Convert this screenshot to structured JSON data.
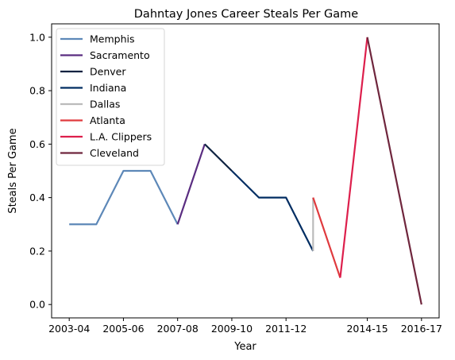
{
  "chart_data": {
    "type": "line",
    "title": "Dahntay Jones Career Steals Per Game",
    "xlabel": "Year",
    "ylabel": "Steals Per Game",
    "x_ticks": [
      "2003-04",
      "2005-06",
      "2007-08",
      "2009-10",
      "2011-12",
      "2014-15",
      "2016-17"
    ],
    "y_ticks": [
      "0.0",
      "0.2",
      "0.4",
      "0.6",
      "0.8",
      "1.0"
    ],
    "ylim": [
      -0.05,
      1.05
    ],
    "grid": false,
    "legend_position": "top-left",
    "series": [
      {
        "name": "Memphis",
        "color": "#5d88b8",
        "points": [
          {
            "x": "2003-04",
            "y": 0.3
          },
          {
            "x": "2004-05",
            "y": 0.3
          },
          {
            "x": "2005-06",
            "y": 0.5
          },
          {
            "x": "2006-07",
            "y": 0.5
          },
          {
            "x": "2007-08",
            "y": 0.3
          }
        ]
      },
      {
        "name": "Sacramento",
        "color": "#5a2d81",
        "points": [
          {
            "x": "2007-08",
            "y": 0.3
          },
          {
            "x": "2008-09",
            "y": 0.6
          }
        ]
      },
      {
        "name": "Denver",
        "color": "#0e2240",
        "points": [
          {
            "x": "2008-09",
            "y": 0.6
          },
          {
            "x": "2009-10",
            "y": 0.5
          }
        ]
      },
      {
        "name": "Indiana",
        "color": "#002d62",
        "points": [
          {
            "x": "2009-10",
            "y": 0.5
          },
          {
            "x": "2010-11",
            "y": 0.4
          },
          {
            "x": "2011-12",
            "y": 0.4
          },
          {
            "x": "2012-13",
            "y": 0.2
          }
        ]
      },
      {
        "name": "Dallas",
        "color": "#bbbbbb",
        "points": [
          {
            "x": "2012-13",
            "y": 0.2
          },
          {
            "x": "2012-13",
            "y": 0.4
          }
        ]
      },
      {
        "name": "Atlanta",
        "color": "#e03a3e",
        "points": [
          {
            "x": "2012-13",
            "y": 0.4
          },
          {
            "x": "2013-14",
            "y": 0.1
          }
        ]
      },
      {
        "name": "L.A. Clippers",
        "color": "#dd1f4c",
        "points": [
          {
            "x": "2013-14",
            "y": 0.1
          },
          {
            "x": "2014-15",
            "y": 1.0
          }
        ]
      },
      {
        "name": "Cleveland",
        "color": "#6f263d",
        "points": [
          {
            "x": "2014-15",
            "y": 1.0
          },
          {
            "x": "2016-17",
            "y": 0.0
          }
        ]
      }
    ]
  }
}
